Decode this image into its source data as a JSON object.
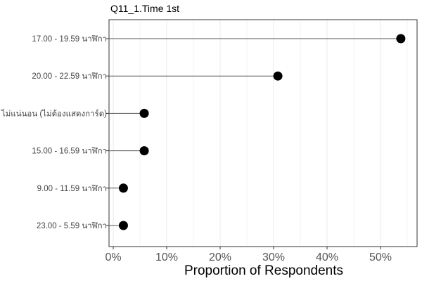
{
  "chart_data": {
    "type": "scatter",
    "style": "lollipop",
    "title": "Q11_1.Time 1st",
    "xlabel": "Proportion of Respondents",
    "ylabel": "",
    "xlim": [
      0,
      0.57
    ],
    "x_ticks": [
      0,
      0.1,
      0.2,
      0.3,
      0.4,
      0.5
    ],
    "x_tick_labels": [
      "0%",
      "10%",
      "20%",
      "30%",
      "40%",
      "50%"
    ],
    "grid": "vertical",
    "legend": "none",
    "categories": [
      "17.00 - 19.59 นาฬิกา",
      "20.00 - 22.59 นาฬิกา",
      "ไม่แน่นอน (ไม่ต้องแสดงการ์ด)",
      "15.00 - 16.59 นาฬิกา",
      "9.00 - 11.59 นาฬิกา",
      "23.00 -   5.59 นาฬิกา"
    ],
    "values": [
      0.538,
      0.308,
      0.058,
      0.058,
      0.019,
      0.019
    ],
    "colors": {
      "point": "#000000",
      "stem": "#555555",
      "grid": "#ebebeb",
      "panel_border": "#333333"
    }
  }
}
